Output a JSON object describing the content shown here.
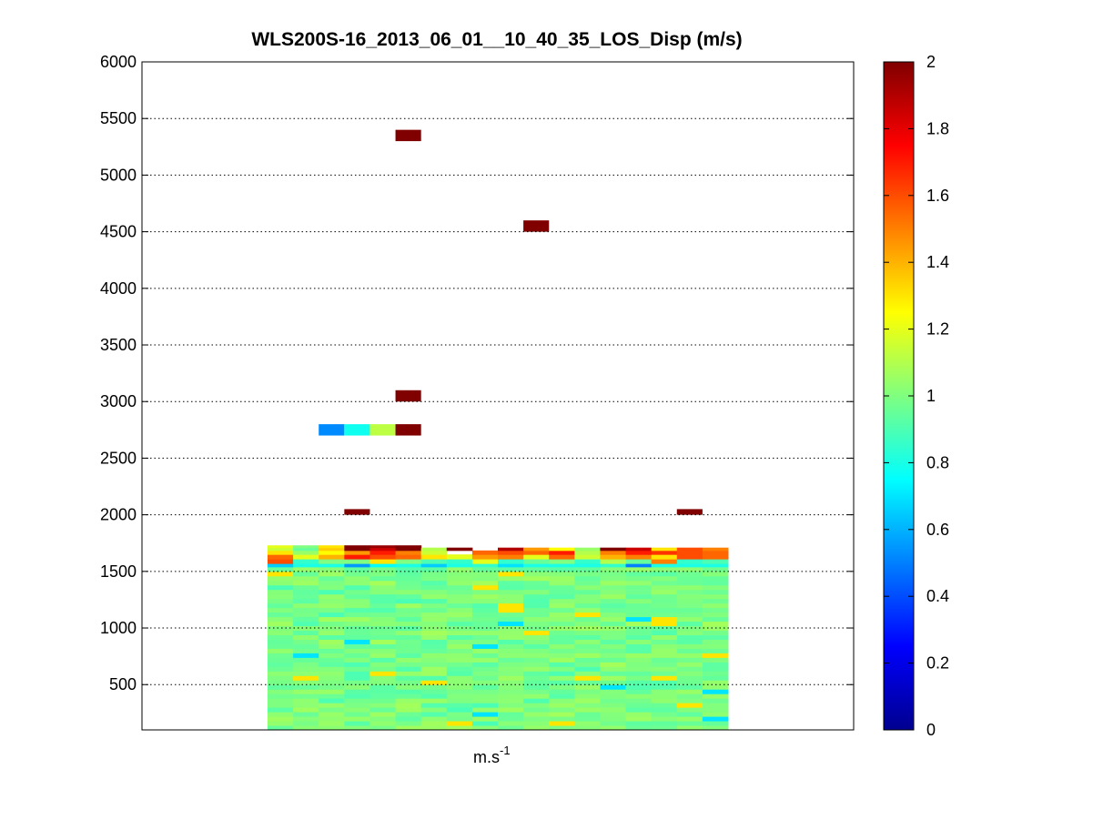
{
  "chart_data": {
    "type": "heatmap",
    "title": "WLS200S-16_2013_06_01__10_40_35_LOS_Disp (m/s)",
    "xlabel_base": "m.s",
    "xlabel_exp": "-1",
    "ylabel": "",
    "ylim": [
      100,
      6000
    ],
    "yticks": [
      "500",
      "1000",
      "1500",
      "2000",
      "2500",
      "3000",
      "3500",
      "4000",
      "4500",
      "5000",
      "5500",
      "6000"
    ],
    "grid_y": true,
    "colorscale": "jet",
    "clim": [
      0,
      2
    ],
    "colorbar_ticks": [
      "0",
      "0.2",
      "0.4",
      "0.6",
      "0.8",
      "1",
      "1.2",
      "1.4",
      "1.6",
      "1.8",
      "2"
    ],
    "columns": 18,
    "data_columns": [
      0,
      18
    ],
    "body": {
      "y_bottom": 100,
      "y_top": 1540,
      "value_range": [
        0.85,
        1.12
      ]
    },
    "near_surface_band": {
      "bins": [
        {
          "y0": 1540,
          "y1": 1570,
          "values": [
            0.65,
            0.8,
            0.8,
            0.55,
            0.75,
            0.8,
            0.65,
            0.8,
            0.85,
            0.7,
            0.8,
            0.8,
            0.8,
            0.85,
            0.5,
            0.8,
            0.8,
            0.8
          ]
        },
        {
          "y0": 1570,
          "y1": 1610,
          "values": [
            1.6,
            0.85,
            1.0,
            1.0,
            1.3,
            1.0,
            0.9,
            0.85,
            1.2,
            0.85,
            0.95,
            1.0,
            0.85,
            1.1,
            0.95,
            1.5,
            0.85,
            0.9
          ]
        },
        {
          "y0": 1610,
          "y1": 1650,
          "values": [
            1.55,
            1.2,
            1.4,
            1.7,
            1.6,
            1.55,
            1.3,
            1.2,
            1.45,
            1.5,
            1.2,
            1.55,
            1.15,
            1.4,
            1.5,
            1.3,
            1.6,
            1.55
          ]
        },
        {
          "y0": 1650,
          "y1": 1685,
          "values": [
            1.3,
            1.05,
            1.25,
            1.45,
            1.7,
            1.5,
            1.15,
            null,
            1.55,
            1.6,
            1.55,
            1.7,
            1.1,
            1.5,
            1.7,
            1.65,
            1.6,
            1.55
          ]
        },
        {
          "y0": 1685,
          "y1": 1710,
          "values": [
            1.15,
            0.95,
            1.35,
            2.0,
            1.85,
            2.0,
            1.1,
            2.0,
            null,
            1.9,
            1.45,
            1.25,
            1.05,
            2.0,
            1.85,
            1.3,
            1.6,
            1.5
          ]
        },
        {
          "y0": 1710,
          "y1": 1730,
          "values": [
            1.2,
            1.0,
            1.3,
            2.0,
            1.95,
            2.0,
            null,
            null,
            null,
            null,
            null,
            null,
            null,
            null,
            null,
            null,
            null,
            null
          ]
        }
      ]
    },
    "cells": [
      {
        "col": 5,
        "y0": 5300,
        "y1": 5400,
        "value": 2.0
      },
      {
        "col": 10,
        "y0": 4500,
        "y1": 4600,
        "value": 2.0
      },
      {
        "col": 5,
        "y0": 3000,
        "y1": 3100,
        "value": 2.0
      },
      {
        "col": 2,
        "y0": 2700,
        "y1": 2800,
        "value": 0.52
      },
      {
        "col": 3,
        "y0": 2700,
        "y1": 2800,
        "value": 0.78
      },
      {
        "col": 4,
        "y0": 2700,
        "y1": 2800,
        "value": 1.12
      },
      {
        "col": 5,
        "y0": 2700,
        "y1": 2800,
        "value": 2.0
      },
      {
        "col": 3,
        "y0": 2000,
        "y1": 2050,
        "value": 2.0
      },
      {
        "col": 16,
        "y0": 2000,
        "y1": 2050,
        "value": 2.0
      }
    ]
  }
}
